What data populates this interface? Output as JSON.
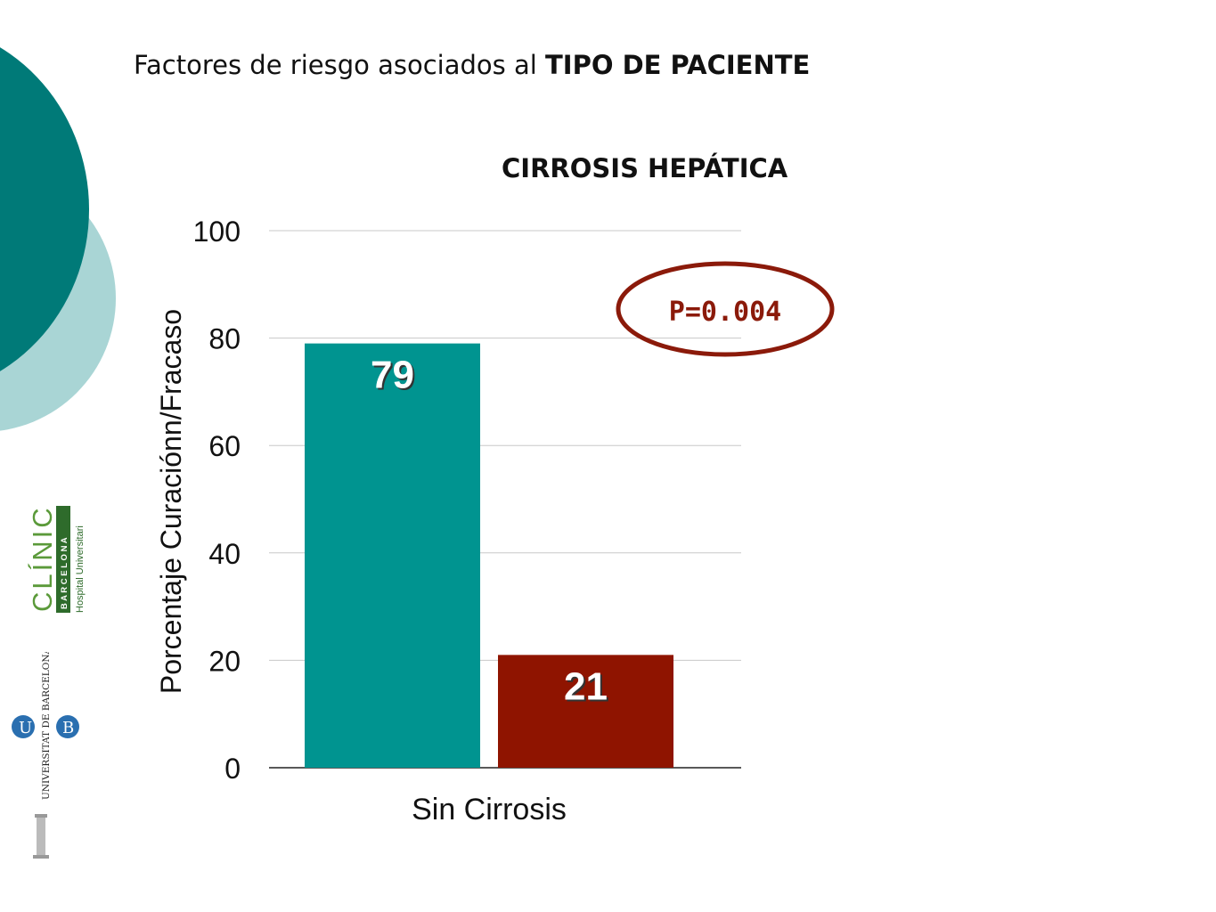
{
  "slide": {
    "title_normal": "Factores de riesgo asociados al ",
    "title_bold": "TIPO DE PACIENTE"
  },
  "logos": {
    "clinic_main": "CLÍNIC",
    "clinic_sub": "B A R C E L O N A",
    "clinic_tag": "Hospital Universitari",
    "ub_name": "UNIVERSITAT DE BARCELONA",
    "ub_letters": "U B"
  },
  "colors": {
    "teal_dark": "#007A78",
    "teal_light": "#A9D5D5",
    "bar_curacion": "#009490",
    "bar_fracaso": "#8F1400",
    "pvalue": "#8B1A0A"
  },
  "chart_data": {
    "type": "bar",
    "title": "CIRROSIS HEPÁTICA",
    "ylabel": "Porcentaje Curaciónn/Fracaso",
    "xlabel": "",
    "categories": [
      "Sin Cirrosis"
    ],
    "series": [
      {
        "values": [
          79
        ],
        "color": "#009490"
      },
      {
        "values": [
          21
        ],
        "color": "#8F1400"
      }
    ],
    "ylim": [
      0,
      100
    ],
    "yticks": [
      0,
      20,
      40,
      60,
      80,
      100
    ],
    "grid": true,
    "annotation": "P=0.004"
  }
}
